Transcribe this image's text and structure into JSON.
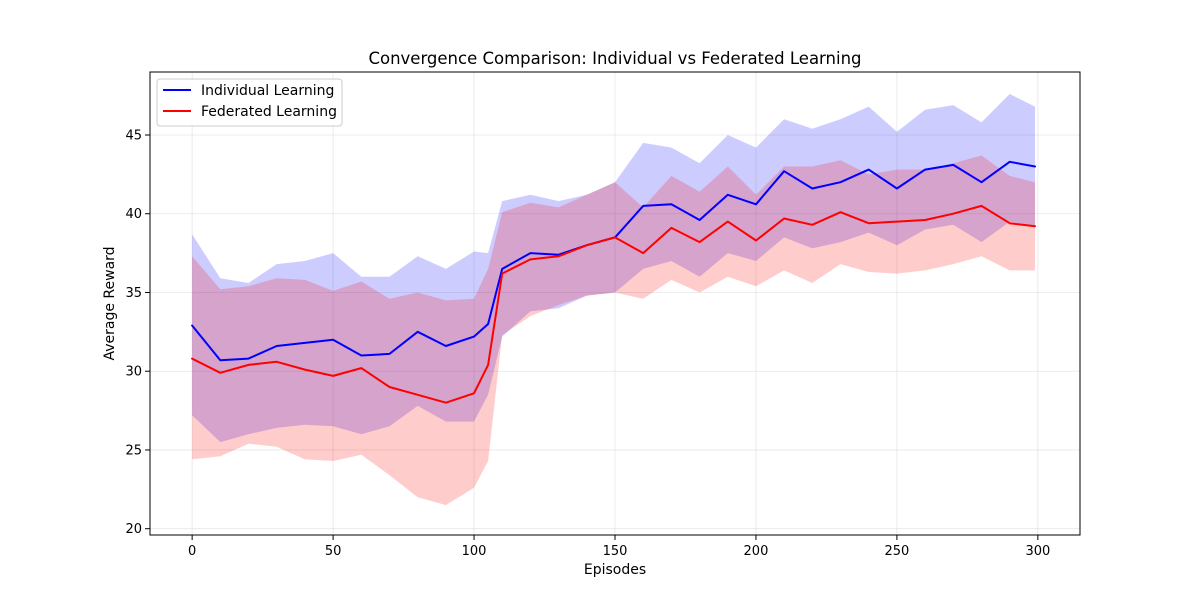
{
  "chart_data": {
    "type": "line",
    "title": "Convergence Comparison: Individual vs Federated Learning",
    "xlabel": "Episodes",
    "ylabel": "Average Reward",
    "xlim": [
      -14.95,
      314.95
    ],
    "ylim": [
      19.6,
      49.0
    ],
    "xticks": [
      0,
      50,
      100,
      150,
      200,
      250,
      300
    ],
    "yticks": [
      20,
      25,
      30,
      35,
      40,
      45
    ],
    "grid": true,
    "legend_position": "top-left",
    "x": [
      0,
      10,
      20,
      30,
      40,
      50,
      60,
      70,
      80,
      90,
      100,
      105,
      110,
      120,
      130,
      140,
      150,
      160,
      170,
      180,
      190,
      200,
      210,
      220,
      230,
      240,
      250,
      260,
      270,
      280,
      290,
      299
    ],
    "series": [
      {
        "name": "Individual Learning",
        "color": "#0000ff",
        "band_color": "#0000ff",
        "values": [
          32.9,
          30.7,
          30.8,
          31.6,
          31.8,
          32.0,
          31.0,
          31.1,
          32.5,
          31.6,
          32.2,
          33.0,
          36.5,
          37.5,
          37.4,
          38.0,
          38.5,
          40.5,
          40.6,
          39.6,
          41.2,
          40.6,
          42.7,
          41.6,
          42.0,
          42.8,
          41.6,
          42.8,
          43.1,
          42.0,
          43.3,
          43.0
        ],
        "lower": [
          27.2,
          25.5,
          26.0,
          26.4,
          26.6,
          26.5,
          26.0,
          26.5,
          27.8,
          26.8,
          26.8,
          28.5,
          32.2,
          33.8,
          34.0,
          34.8,
          35.0,
          36.5,
          37.0,
          36.0,
          37.5,
          37.0,
          38.5,
          37.8,
          38.2,
          38.8,
          38.0,
          39.0,
          39.3,
          38.2,
          39.5,
          39.2
        ],
        "upper": [
          38.7,
          35.9,
          35.6,
          36.8,
          37.0,
          37.5,
          36.0,
          36.0,
          37.3,
          36.5,
          37.6,
          37.5,
          40.8,
          41.2,
          40.8,
          41.2,
          42.0,
          44.5,
          44.2,
          43.2,
          45.0,
          44.2,
          46.0,
          45.4,
          46.0,
          46.8,
          45.2,
          46.6,
          46.9,
          45.8,
          47.6,
          46.8
        ]
      },
      {
        "name": "Federated Learning",
        "color": "#ff0000",
        "band_color": "#ff0000",
        "values": [
          30.8,
          29.9,
          30.4,
          30.6,
          30.1,
          29.7,
          30.2,
          29.0,
          28.5,
          28.0,
          28.6,
          30.4,
          36.2,
          37.1,
          37.3,
          38.0,
          38.5,
          37.5,
          39.1,
          38.2,
          39.5,
          38.3,
          39.7,
          39.3,
          40.1,
          39.4,
          39.5,
          39.6,
          40.0,
          40.5,
          39.4,
          39.2
        ],
        "lower": [
          24.4,
          24.6,
          25.4,
          25.2,
          24.4,
          24.3,
          24.7,
          23.4,
          22.0,
          21.5,
          22.6,
          24.3,
          32.3,
          33.5,
          34.2,
          34.8,
          35.0,
          34.6,
          35.8,
          35.0,
          36.0,
          35.4,
          36.4,
          35.6,
          36.8,
          36.3,
          36.2,
          36.4,
          36.8,
          37.3,
          36.4,
          36.4
        ],
        "upper": [
          37.3,
          35.2,
          35.4,
          35.9,
          35.8,
          35.1,
          35.7,
          34.6,
          35.0,
          34.5,
          34.6,
          36.5,
          40.1,
          40.7,
          40.4,
          41.2,
          42.0,
          40.4,
          42.4,
          41.4,
          43.0,
          41.2,
          43.0,
          43.0,
          43.4,
          42.5,
          42.8,
          42.8,
          43.2,
          43.7,
          42.4,
          42.0
        ]
      }
    ]
  }
}
